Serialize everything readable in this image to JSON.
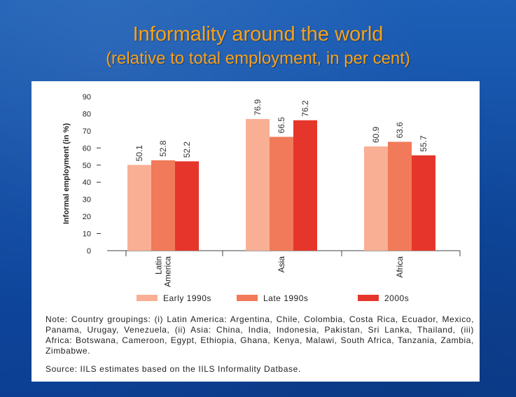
{
  "title": "Informality around the world",
  "subtitle": "(relative to total employment, in per cent)",
  "chart_data": {
    "type": "bar",
    "ylabel": "Informal employment (in %)",
    "ylim": [
      0,
      90
    ],
    "yticks": [
      0,
      10,
      20,
      30,
      40,
      50,
      60,
      70,
      80,
      90
    ],
    "categories": [
      "Latin America",
      "Asia",
      "Africa"
    ],
    "category_lines": [
      [
        "Latin",
        "America"
      ],
      [
        "Asia"
      ],
      [
        "Africa"
      ]
    ],
    "series": [
      {
        "name": "Early 1990s",
        "color": "#f8af94",
        "values": [
          50.1,
          76.9,
          60.9
        ]
      },
      {
        "name": "Late 1990s",
        "color": "#f07a59",
        "values": [
          52.8,
          66.5,
          63.6
        ]
      },
      {
        "name": "2000s",
        "color": "#e6362c",
        "values": [
          52.2,
          76.2,
          55.7
        ]
      }
    ],
    "data_labels": [
      [
        "50.1",
        "52.8",
        "52.2"
      ],
      [
        "76.9",
        "66.5",
        "76.2"
      ],
      [
        "60.9",
        "63.6",
        "55.7"
      ]
    ],
    "legend_position": "bottom",
    "grid": false
  },
  "note": "Note: Country groupings: (i) Latin America: Argentina, Chile, Colombia, Costa Rica, Ecuador, Mexico, Panama, Urugay, Venezuela, (ii) Asia: China, India, Indonesia, Pakistan, Sri Lanka, Thailand, (iii) Africa: Botswana, Cameroon, Egypt, Ethiopia, Ghana, Kenya, Malawi, South Africa, Tanzania, Zambia, Zimbabwe.",
  "source": "Source: IILS estimates based on the IILS Informality Datbase."
}
